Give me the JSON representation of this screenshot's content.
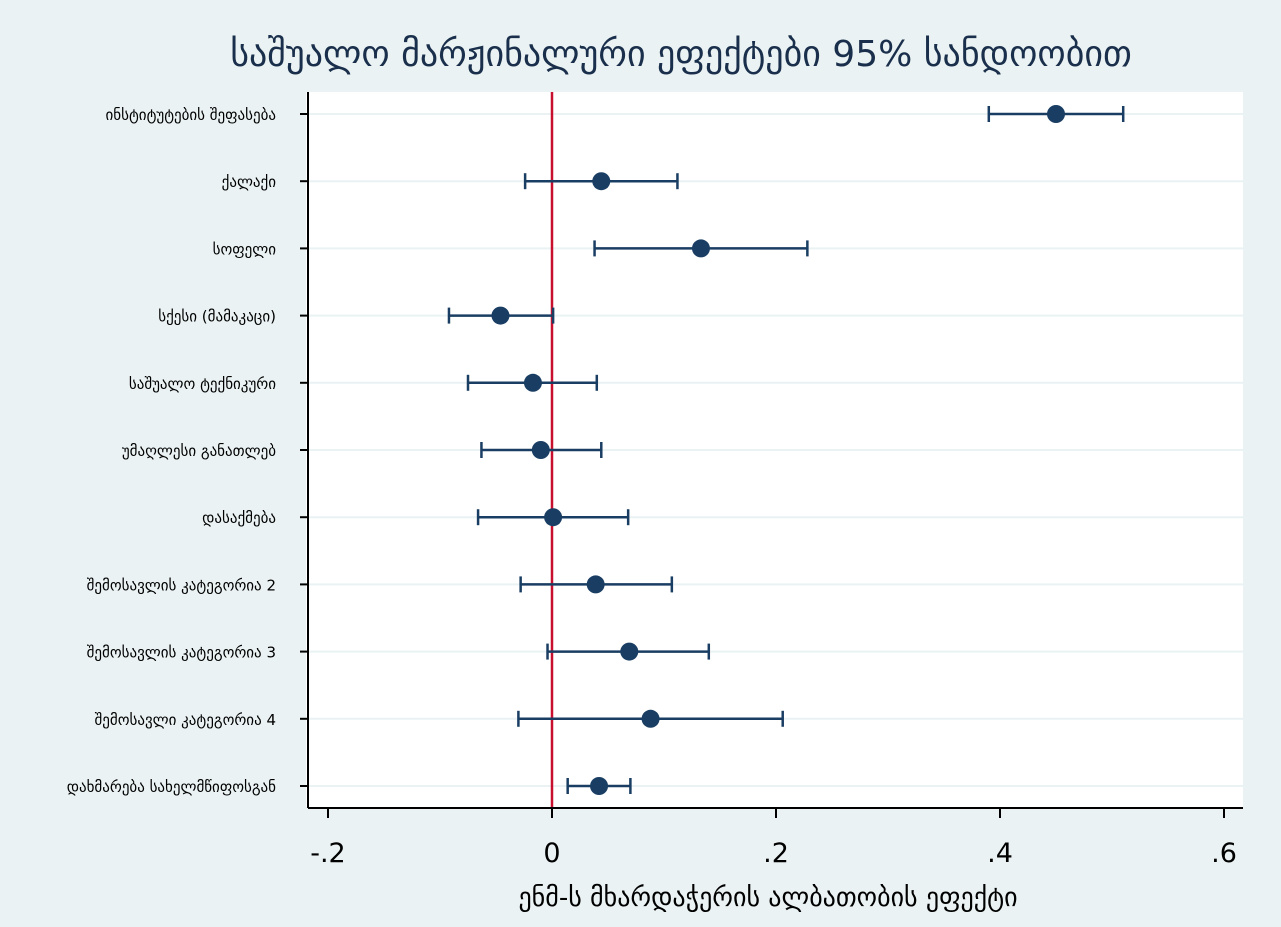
{
  "chart_data": {
    "type": "scatter",
    "subtype": "coefficient-plot-with-95-percent-ci",
    "title": "საშუალო მარჟინალური ეფექტები 95% სანდოობით",
    "xlabel": "ენმ-ს მხარდაჭერის ალბათობის ეფექტი",
    "ylabel": "",
    "xlim": [
      -0.22,
      0.62
    ],
    "xticks": [
      {
        "value": -0.2,
        "label": "-.2"
      },
      {
        "value": 0,
        "label": "0"
      },
      {
        "value": 0.2,
        "label": ".2"
      },
      {
        "value": 0.4,
        "label": ".4"
      },
      {
        "value": 0.6,
        "label": ".6"
      }
    ],
    "reference_line": {
      "value": 0,
      "color": "#c8102e"
    },
    "grid": "horizontal",
    "colors": {
      "marker": "#1a3e63",
      "ci": "#1a3e63",
      "background": "#eaf2f3",
      "plot_background": "#ffffff",
      "gridline": "#eaf2f3",
      "title": "#1a2f4b"
    },
    "points": [
      {
        "label": "ინსტიტუტების შეფასება",
        "estimate": 0.45,
        "ci_low": 0.39,
        "ci_high": 0.51
      },
      {
        "label": "ქალაქი",
        "estimate": 0.044,
        "ci_low": -0.024,
        "ci_high": 0.112
      },
      {
        "label": "სოფელი",
        "estimate": 0.133,
        "ci_low": 0.038,
        "ci_high": 0.228
      },
      {
        "label": "სქესი (მამაკაცი)",
        "estimate": -0.046,
        "ci_low": -0.092,
        "ci_high": 0.001
      },
      {
        "label": "საშუალო ტექნიკური",
        "estimate": -0.017,
        "ci_low": -0.075,
        "ci_high": 0.04
      },
      {
        "label": "უმაღლესი განათლებ",
        "estimate": -0.01,
        "ci_low": -0.063,
        "ci_high": 0.044
      },
      {
        "label": "დასაქმება",
        "estimate": 0.001,
        "ci_low": -0.066,
        "ci_high": 0.068
      },
      {
        "label": "შემოსავლის კატეგორია 2",
        "estimate": 0.039,
        "ci_low": -0.028,
        "ci_high": 0.107
      },
      {
        "label": "შემოსავლის კატეგორია 3",
        "estimate": 0.069,
        "ci_low": -0.004,
        "ci_high": 0.14
      },
      {
        "label": "შემოსავლი კატეგორია 4",
        "estimate": 0.088,
        "ci_low": -0.03,
        "ci_high": 0.206
      },
      {
        "label": "დახმარება სახელმწიფოსგან",
        "estimate": 0.042,
        "ci_low": 0.014,
        "ci_high": 0.07
      }
    ]
  }
}
